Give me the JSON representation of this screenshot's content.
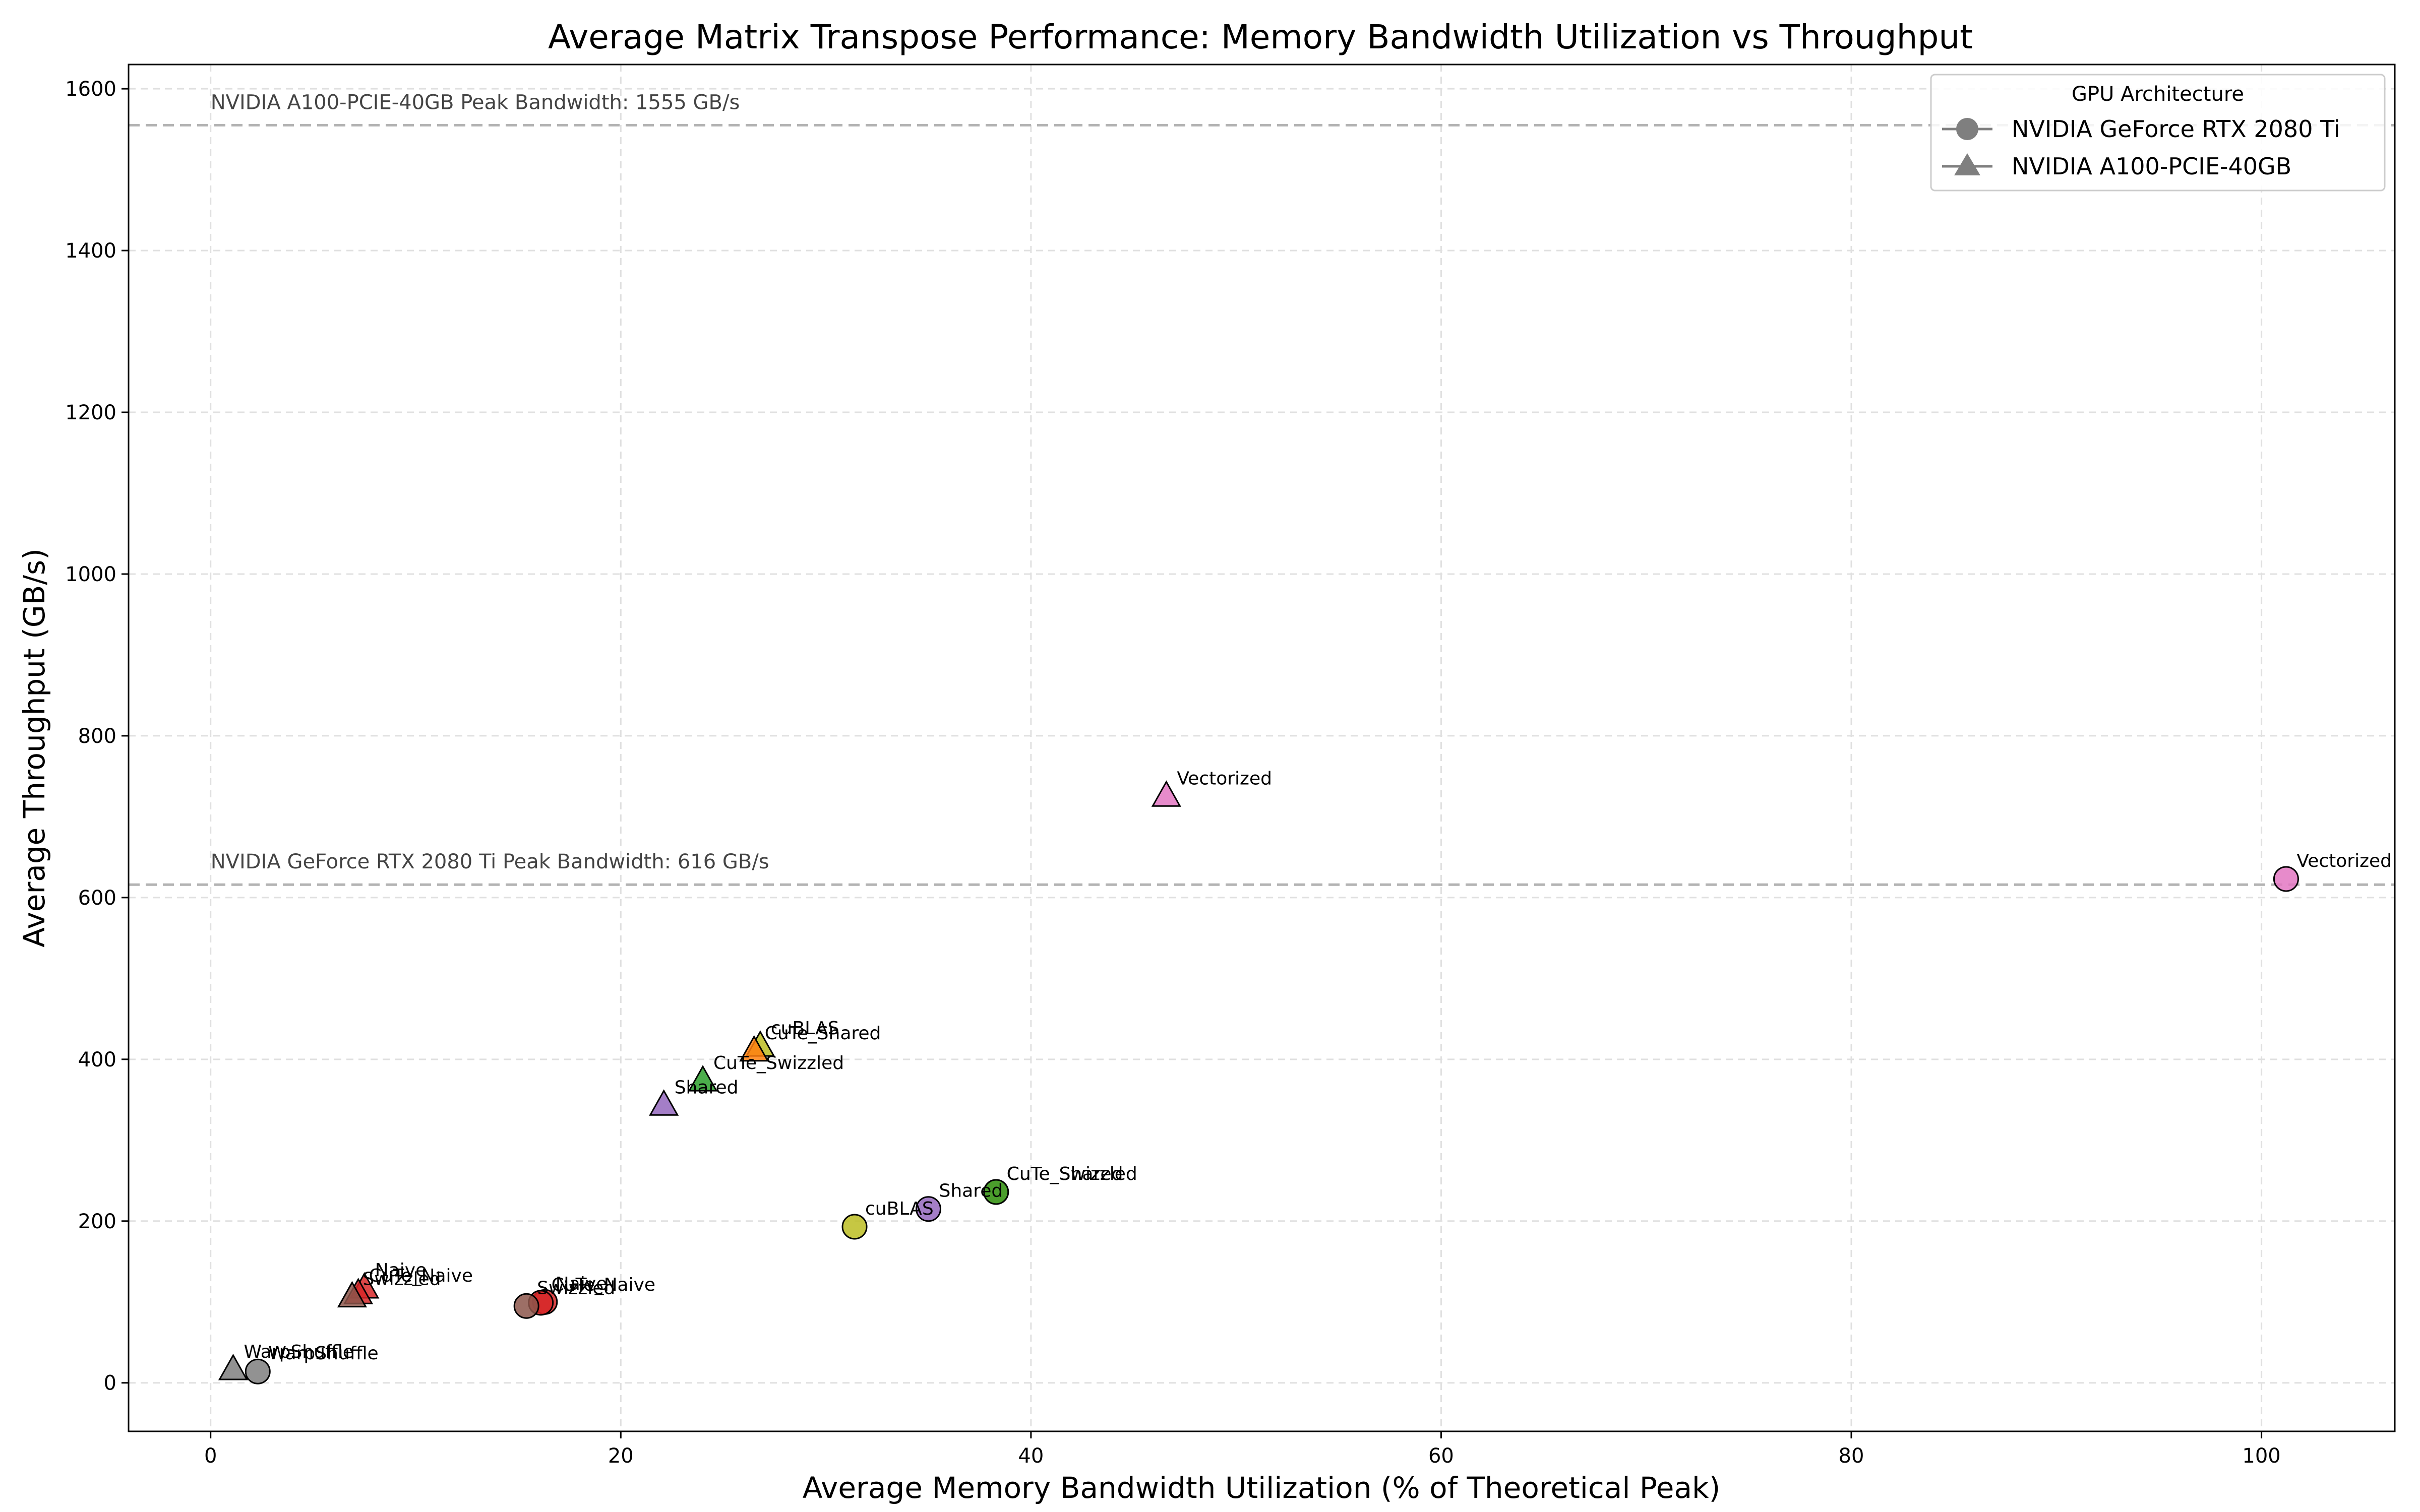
{
  "chart_data": {
    "type": "scatter",
    "title": "Average Matrix Transpose Performance: Memory Bandwidth Utilization vs Throughput",
    "xlabel": "Average Memory Bandwidth Utilization (% of Theoretical Peak)",
    "ylabel": "Average Throughput (GB/s)",
    "xlim": [
      -4,
      106.5
    ],
    "ylim": [
      -60,
      1630
    ],
    "xticks": [
      0,
      20,
      40,
      60,
      80,
      100
    ],
    "yticks": [
      0,
      200,
      400,
      600,
      800,
      1000,
      1200,
      1400,
      1600
    ],
    "grid": true,
    "legend": {
      "title": "GPU Architecture",
      "placement": "top-right",
      "entries": [
        {
          "label": "NVIDIA GeForce RTX 2080 Ti",
          "marker": "circle"
        },
        {
          "label": "NVIDIA A100-PCIE-40GB",
          "marker": "triangle"
        }
      ]
    },
    "reference_lines": [
      {
        "y": 1555,
        "label": "NVIDIA A100-PCIE-40GB Peak Bandwidth: 1555 GB/s"
      },
      {
        "y": 616,
        "label": "NVIDIA GeForce RTX 2080 Ti Peak Bandwidth: 616 GB/s"
      }
    ],
    "series": [
      {
        "name": "NVIDIA GeForce RTX 2080 Ti",
        "marker": "circle",
        "points": [
          {
            "label": "Vectorized",
            "x": 101.2,
            "y": 623,
            "color": "#e377c2"
          },
          {
            "label": "CuTe_Shared",
            "x": 38.3,
            "y": 236,
            "color": "#ff7f0e"
          },
          {
            "label": "CuTe_Swizzled",
            "x": 38.3,
            "y": 236,
            "color": "#2ca02c"
          },
          {
            "label": "Shared",
            "x": 35.0,
            "y": 215,
            "color": "#9467bd"
          },
          {
            "label": "cuBLAS",
            "x": 31.4,
            "y": 193,
            "color": "#bcbd22"
          },
          {
            "label": "Naive",
            "x": 16.3,
            "y": 100,
            "color": "#d62728"
          },
          {
            "label": "CuTe_Naive",
            "x": 16.1,
            "y": 99,
            "color": "#d62728"
          },
          {
            "label": "Swizzled",
            "x": 15.4,
            "y": 95,
            "color": "#8c564b"
          },
          {
            "label": "WarpShuffle",
            "x": 2.3,
            "y": 14,
            "color": "#7f7f7f"
          }
        ]
      },
      {
        "name": "NVIDIA A100-PCIE-40GB",
        "marker": "triangle",
        "points": [
          {
            "label": "Vectorized",
            "x": 46.6,
            "y": 725,
            "color": "#e377c2"
          },
          {
            "label": "cuBLAS",
            "x": 26.8,
            "y": 416,
            "color": "#bcbd22"
          },
          {
            "label": "CuTe_Shared",
            "x": 26.5,
            "y": 410,
            "color": "#ff7f0e"
          },
          {
            "label": "CuTe_Swizzled",
            "x": 24.0,
            "y": 373,
            "color": "#2ca02c"
          },
          {
            "label": "Shared",
            "x": 22.1,
            "y": 343,
            "color": "#9467bd"
          },
          {
            "label": "Naive",
            "x": 7.5,
            "y": 117,
            "color": "#d62728"
          },
          {
            "label": "CuTe_Naive",
            "x": 7.2,
            "y": 110,
            "color": "#d62728"
          },
          {
            "label": "Swizzled",
            "x": 6.9,
            "y": 106,
            "color": "#8c564b"
          },
          {
            "label": "WarpShuffle",
            "x": 1.1,
            "y": 16,
            "color": "#7f7f7f"
          }
        ]
      }
    ]
  }
}
